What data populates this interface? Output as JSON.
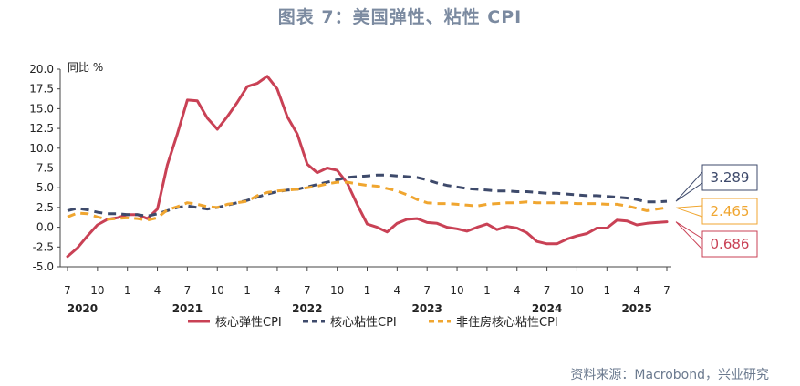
{
  "title": "图表 7：美国弹性、粘性 CPI",
  "source": "资料来源：Macrobond，兴业研究",
  "chart_data": {
    "type": "line",
    "title": "图表 7：美国弹性、粘性 CPI",
    "ylabel": "同比 %",
    "ylim": [
      -5,
      20
    ],
    "yticks": [
      "20.0",
      "17.5",
      "15.0",
      "12.5",
      "10.0",
      "7.5",
      "5.0",
      "2.5",
      "0.0",
      "-2.5",
      "-5.0"
    ],
    "month_ticks": [
      {
        "m": 0,
        "label": "7"
      },
      {
        "m": 3,
        "label": "10"
      },
      {
        "m": 6,
        "label": "1"
      },
      {
        "m": 9,
        "label": "4"
      },
      {
        "m": 12,
        "label": "7"
      },
      {
        "m": 15,
        "label": "10"
      },
      {
        "m": 18,
        "label": "1"
      },
      {
        "m": 21,
        "label": "4"
      },
      {
        "m": 24,
        "label": "7"
      },
      {
        "m": 27,
        "label": "10"
      },
      {
        "m": 30,
        "label": "1"
      },
      {
        "m": 33,
        "label": "4"
      },
      {
        "m": 36,
        "label": "7"
      },
      {
        "m": 39,
        "label": "10"
      },
      {
        "m": 42,
        "label": "1"
      },
      {
        "m": 45,
        "label": "4"
      },
      {
        "m": 48,
        "label": "7"
      },
      {
        "m": 51,
        "label": "10"
      },
      {
        "m": 54,
        "label": "1"
      },
      {
        "m": 57,
        "label": "4"
      },
      {
        "m": 60,
        "label": "7"
      }
    ],
    "year_labels": [
      {
        "m": 1.5,
        "label": "2020"
      },
      {
        "m": 12,
        "label": "2021"
      },
      {
        "m": 24,
        "label": "2022"
      },
      {
        "m": 36,
        "label": "2023"
      },
      {
        "m": 48,
        "label": "2024"
      },
      {
        "m": 57,
        "label": "2025"
      }
    ],
    "x_start": "2020-07",
    "series": [
      {
        "name": "核心弹性CPI",
        "color": "#c94155",
        "style": "solid",
        "values": [
          -3.7,
          -2.6,
          -1.1,
          0.3,
          1.0,
          1.2,
          1.6,
          1.6,
          1.1,
          2.3,
          7.9,
          11.8,
          16.1,
          16.0,
          13.8,
          12.4,
          14.0,
          15.8,
          17.8,
          18.2,
          19.1,
          17.5,
          14.0,
          11.8,
          8.0,
          6.9,
          7.5,
          7.2,
          5.6,
          2.9,
          0.4,
          0.0,
          -0.6,
          0.5,
          1.0,
          1.1,
          0.6,
          0.5,
          0.0,
          -0.2,
          -0.5,
          0.0,
          0.4,
          -0.3,
          0.1,
          -0.1,
          -0.7,
          -1.8,
          -2.1,
          -2.1,
          -1.5,
          -1.1,
          -0.8,
          -0.1,
          -0.1,
          0.9,
          0.8,
          0.3,
          0.5,
          0.6,
          0.686
        ]
      },
      {
        "name": "核心粘性CPI",
        "color": "#3e4a6b",
        "style": "dashed",
        "values": [
          2.1,
          2.4,
          2.2,
          1.9,
          1.7,
          1.7,
          1.6,
          1.6,
          1.4,
          1.7,
          2.1,
          2.5,
          2.7,
          2.5,
          2.3,
          2.5,
          2.8,
          3.1,
          3.4,
          3.8,
          4.2,
          4.5,
          4.7,
          4.8,
          5.1,
          5.4,
          5.7,
          6.0,
          6.3,
          6.4,
          6.5,
          6.6,
          6.6,
          6.5,
          6.4,
          6.3,
          6.0,
          5.6,
          5.3,
          5.1,
          4.9,
          4.8,
          4.7,
          4.6,
          4.6,
          4.5,
          4.5,
          4.4,
          4.3,
          4.3,
          4.2,
          4.1,
          4.0,
          4.0,
          3.9,
          3.8,
          3.7,
          3.5,
          3.2,
          3.2,
          3.289
        ]
      },
      {
        "name": "非住房核心粘性CPI",
        "color": "#f0a630",
        "style": "dashed",
        "values": [
          1.3,
          1.8,
          1.7,
          1.3,
          1.0,
          1.1,
          1.2,
          1.1,
          0.9,
          1.2,
          2.2,
          2.6,
          3.1,
          2.9,
          2.6,
          2.5,
          2.9,
          3.1,
          3.3,
          4.0,
          4.4,
          4.6,
          4.7,
          4.8,
          5.0,
          5.2,
          5.5,
          5.7,
          5.7,
          5.5,
          5.3,
          5.2,
          4.9,
          4.6,
          4.1,
          3.5,
          3.1,
          3.0,
          3.0,
          2.9,
          2.8,
          2.7,
          2.9,
          3.0,
          3.1,
          3.1,
          3.2,
          3.1,
          3.1,
          3.1,
          3.1,
          3.0,
          3.0,
          3.0,
          2.9,
          2.9,
          2.7,
          2.4,
          2.1,
          2.3,
          2.465
        ]
      }
    ],
    "end_labels": [
      {
        "series": 1,
        "text": "3.289",
        "color": "#3e4a6b"
      },
      {
        "series": 2,
        "text": "2.465",
        "color": "#f0a630"
      },
      {
        "series": 0,
        "text": "0.686",
        "color": "#c94155"
      }
    ]
  }
}
